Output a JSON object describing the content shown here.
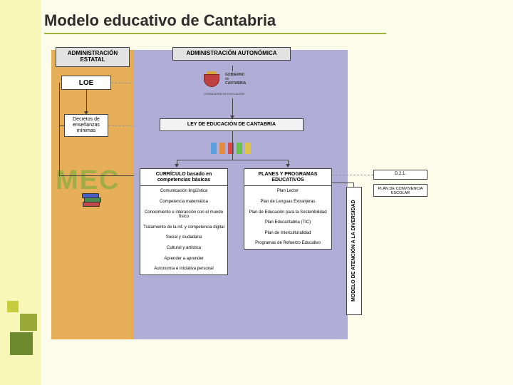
{
  "title": "Modelo educativo de Cantabria",
  "theme": {
    "page_bg": "#fdfcea",
    "sidebar_bg": "#f8f7b8",
    "accent_squares": [
      "#c6cc3d",
      "#98a935",
      "#6e8a2f"
    ],
    "col_estatal_bg": "#e6ae56",
    "col_autonomica_bg": "#b0aed6",
    "mec_color": "#83ad42",
    "title_underline": "#9db53f",
    "header_bg": "#e2e2e2",
    "box_bg": "#ffffff",
    "border": "#444444",
    "runner_colors": [
      "#5aa0e0",
      "#e08a3c",
      "#d94b4b",
      "#6fbf4b",
      "#e0c34b"
    ]
  },
  "estatal": {
    "header": "ADMINISTRACIÓN ESTATAL",
    "loe": "LOE",
    "decretos": "Decretos de enseñanzas mínimas",
    "mec": "MEC"
  },
  "autonomica": {
    "header": "ADMINISTRACIÓN AUTONÓMICA",
    "gobierno_line1": "GOBIERNO",
    "gobierno_line2": "de",
    "gobierno_line3": "CANTABRIA",
    "consejeria": "CONSEJERÍA DE EDUCACIÓN",
    "ley": "LEY DE EDUCACIÓN DE CANTABRIA"
  },
  "curriculo": {
    "header": "CURRÍCULO basado en competencias básicas",
    "items": [
      "Comunicación lingüística",
      "Competencia matemática",
      "Conocimiento e interacción con el mundo físico",
      "Tratamiento de la inf. y competencia digital",
      "Social y ciudadana",
      "Cultural y artística",
      "Aprender a aprender",
      "Autonomía e iniciativa personal"
    ]
  },
  "planes": {
    "header": "PLANES Y PROGRAMAS EDUCATIVOS",
    "items": [
      "Plan Lector",
      "Plan de Lenguas Extranjeras",
      "Plan de Educación para la Sostenibilidad",
      "Plan Educantabria (TIC)",
      "Plan de Interculturalidad",
      "Programas de Refuerzo Educativo"
    ]
  },
  "modelo_atencion": "MODELO DE ATENCIÓN A LA DIVERSIDAD",
  "convivencia": {
    "code": "D.2.1.",
    "label": "PLAN DE CONVIVENCIA ESCOLAR"
  }
}
